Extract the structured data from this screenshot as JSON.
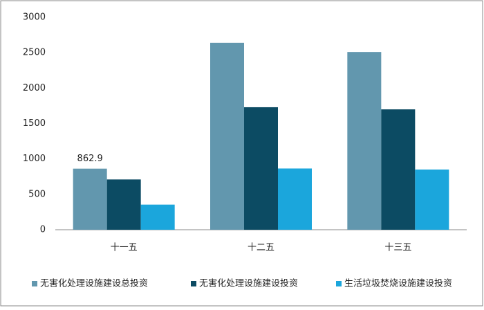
{
  "chart_data": {
    "type": "bar",
    "categories": [
      "十一五",
      "十二五",
      "十三五"
    ],
    "series": [
      {
        "name": "无害化处理设施建设总投资",
        "color": "#6297ae",
        "values": [
          862.9,
          2640,
          2510
        ],
        "value_labels": [
          "862.9",
          null,
          null
        ]
      },
      {
        "name": "无害化处理设施建设投资",
        "color": "#0c4b63",
        "values": [
          710,
          1730,
          1700
        ]
      },
      {
        "name": "生活垃圾焚烧设施建设投资",
        "color": "#1ba6dc",
        "values": [
          355,
          865,
          850
        ]
      }
    ],
    "ylim": [
      0,
      3000
    ],
    "yticks": [
      0,
      500,
      1000,
      1500,
      2000,
      2500,
      3000
    ],
    "grid": false,
    "legend": "bottom"
  }
}
